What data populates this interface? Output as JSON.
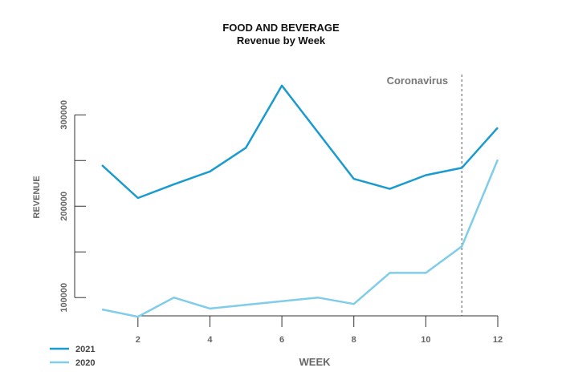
{
  "chart_data": {
    "type": "line",
    "title": "FOOD AND BEVERAGE",
    "subtitle": "Revenue by Week",
    "xlabel": "WEEK",
    "ylabel": "REVENUE",
    "x": [
      1,
      2,
      3,
      4,
      5,
      6,
      7,
      8,
      9,
      10,
      11,
      12
    ],
    "xlim": [
      1,
      12
    ],
    "ylim": [
      80000,
      345000
    ],
    "x_ticks": [
      2,
      4,
      6,
      8,
      10,
      12
    ],
    "x_tick_labels": [
      "2",
      "4",
      "6",
      "8",
      "10",
      "12"
    ],
    "y_ticks": [
      100000,
      150000,
      200000,
      250000,
      300000
    ],
    "y_tick_labels": [
      "100000",
      "",
      "200000",
      "",
      "300000"
    ],
    "grid": false,
    "legend_position": "bottom-left",
    "series": [
      {
        "name": "2021",
        "color": "#1a9bd0",
        "values": [
          245000,
          209000,
          224000,
          238000,
          264000,
          332000,
          281000,
          230000,
          219000,
          234000,
          242000,
          286000
        ]
      },
      {
        "name": "2020",
        "color": "#7fcde8",
        "values": [
          87000,
          79000,
          100000,
          88000,
          92000,
          96000,
          100000,
          93000,
          127000,
          127000,
          156000,
          251000
        ]
      }
    ],
    "annotations": [
      {
        "text": "Coronavirus",
        "x": 11,
        "style": "dashed-vertical-line",
        "color": "#555555"
      }
    ]
  }
}
